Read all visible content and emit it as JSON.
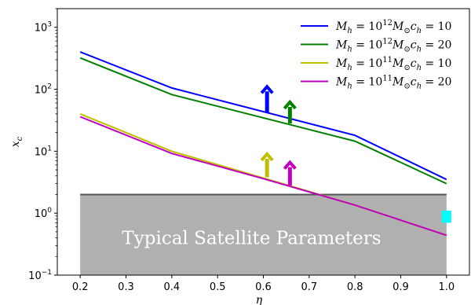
{
  "chart_data": {
    "type": "line",
    "title": "",
    "xlabel": "η",
    "ylabel": "x_c",
    "xlim": [
      0.15,
      1.05
    ],
    "ylim": [
      0.1,
      2000
    ],
    "yscale": "log",
    "grid": false,
    "legend_position": "top-right",
    "x_ticks": [
      "0.2",
      "0.3",
      "0.4",
      "0.5",
      "0.6",
      "0.7",
      "0.8",
      "0.9",
      "1.0"
    ],
    "y_ticks": [
      {
        "value": 0.1,
        "base": "10",
        "exp": "−1"
      },
      {
        "value": 1,
        "base": "10",
        "exp": "0"
      },
      {
        "value": 10,
        "base": "10",
        "exp": "1"
      },
      {
        "value": 100,
        "base": "10",
        "exp": "2"
      },
      {
        "value": 1000,
        "base": "10",
        "exp": "3"
      }
    ],
    "series": [
      {
        "name": "M_h = 10^12 M_⊙ c_h = 10",
        "m_exp": "12",
        "c_h": "10",
        "color": "#0000ff",
        "x": [
          0.2,
          0.4,
          0.8,
          1.0
        ],
        "y": [
          400,
          105,
          18,
          3.5
        ]
      },
      {
        "name": "M_h = 10^12 M_⊙ c_h = 20",
        "m_exp": "12",
        "c_h": "20",
        "color": "#008000",
        "x": [
          0.2,
          0.4,
          0.8,
          1.0
        ],
        "y": [
          320,
          82,
          14.5,
          3.0
        ]
      },
      {
        "name": "M_h = 10^11 M_⊙ c_h = 10",
        "m_exp": "11",
        "c_h": "10",
        "color": "#bfbf00",
        "x": [
          0.2,
          0.4,
          0.6,
          0.8,
          1.0
        ],
        "y": [
          40,
          10,
          3.7,
          1.35,
          0.44
        ]
      },
      {
        "name": "M_h = 10^11 M_⊙ c_h = 20",
        "m_exp": "11",
        "c_h": "20",
        "color": "#bf00bf",
        "x": [
          0.2,
          0.4,
          0.6,
          0.8,
          1.0
        ],
        "y": [
          36,
          9.2,
          3.6,
          1.35,
          0.44
        ]
      }
    ],
    "arrows": [
      {
        "x": 0.608,
        "y_from": 42,
        "y_to": 110,
        "color": "#0000ff"
      },
      {
        "x": 0.658,
        "y_from": 28,
        "y_to": 62,
        "color": "#008000"
      },
      {
        "x": 0.608,
        "y_from": 3.8,
        "y_to": 9.0,
        "color": "#bfbf00"
      },
      {
        "x": 0.658,
        "y_from": 2.8,
        "y_to": 6.6,
        "color": "#bf00bf"
      }
    ],
    "band": {
      "x_from": 0.2,
      "x_to": 1.0,
      "y_from": 0.1,
      "y_to": 2.0,
      "fill": "#b0b0b0",
      "edge": "#555555",
      "label": "Typical Satellite Parameters"
    },
    "marker": {
      "x": 1.0,
      "y_from": 0.7,
      "y_to": 1.1,
      "color": "#00ffff"
    }
  }
}
